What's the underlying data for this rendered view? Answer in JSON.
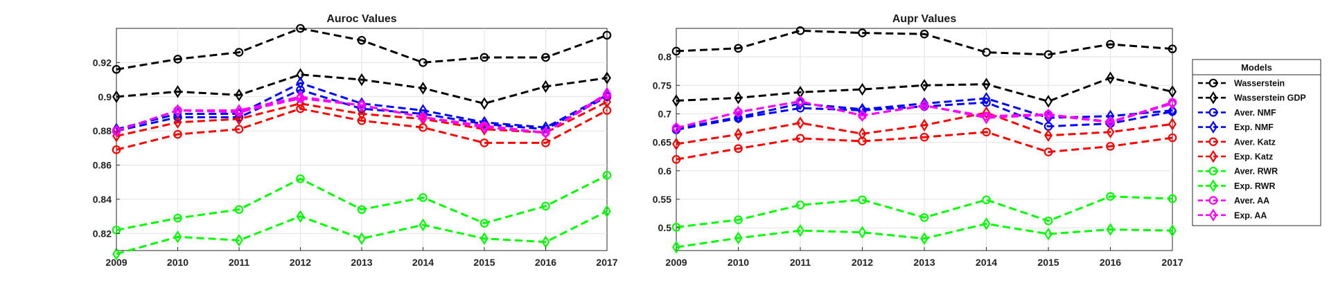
{
  "chart_data": [
    {
      "type": "line",
      "title": "Auroc Values",
      "x": [
        "2009",
        "2010",
        "2011",
        "2012",
        "2013",
        "2014",
        "2015",
        "2016",
        "2017"
      ],
      "ylim": [
        0.81,
        0.94
      ],
      "yticks": [
        "0.82",
        "0.84",
        "0.86",
        "0.88",
        "0.9",
        "0.92"
      ],
      "ytick_values": [
        0.82,
        0.84,
        0.86,
        0.88,
        0.9,
        0.92
      ],
      "grid": true,
      "series": [
        {
          "name": "Wasserstein",
          "color": "#000000",
          "marker": "circle",
          "values": [
            0.916,
            0.922,
            0.926,
            0.94,
            0.933,
            0.92,
            0.923,
            0.923,
            0.936
          ]
        },
        {
          "name": "Wasserstein GDP",
          "color": "#000000",
          "marker": "diamond",
          "values": [
            0.9,
            0.903,
            0.901,
            0.913,
            0.91,
            0.905,
            0.896,
            0.906,
            0.911
          ]
        },
        {
          "name": "Aver. NMF",
          "color": "#0000ff",
          "marker": "circle",
          "values": [
            0.88,
            0.888,
            0.888,
            0.904,
            0.893,
            0.89,
            0.884,
            0.881,
            0.9
          ]
        },
        {
          "name": "Exp. NMF",
          "color": "#0000ff",
          "marker": "diamond",
          "values": [
            0.881,
            0.89,
            0.89,
            0.908,
            0.896,
            0.892,
            0.885,
            0.882,
            0.901
          ]
        },
        {
          "name": "Aver. Katz",
          "color": "#ff0000",
          "marker": "circle",
          "values": [
            0.869,
            0.878,
            0.881,
            0.893,
            0.886,
            0.882,
            0.873,
            0.873,
            0.892
          ]
        },
        {
          "name": "Exp. Katz",
          "color": "#ff0000",
          "marker": "diamond",
          "values": [
            0.877,
            0.885,
            0.887,
            0.896,
            0.89,
            0.887,
            0.881,
            0.879,
            0.897
          ]
        },
        {
          "name": "Aver. RWR",
          "color": "#00ff00",
          "marker": "circle",
          "values": [
            0.822,
            0.829,
            0.834,
            0.852,
            0.834,
            0.841,
            0.826,
            0.836,
            0.854
          ]
        },
        {
          "name": "Exp. RWR",
          "color": "#00ff00",
          "marker": "diamond",
          "values": [
            0.808,
            0.818,
            0.816,
            0.83,
            0.817,
            0.825,
            0.817,
            0.815,
            0.833
          ]
        },
        {
          "name": "Aver. AA",
          "color": "#ff00ff",
          "marker": "circle",
          "values": [
            0.88,
            0.892,
            0.891,
            0.899,
            0.895,
            0.888,
            0.883,
            0.879,
            0.901
          ]
        },
        {
          "name": "Exp. AA",
          "color": "#ff00ff",
          "marker": "diamond",
          "values": [
            0.88,
            0.892,
            0.892,
            0.9,
            0.895,
            0.888,
            0.882,
            0.879,
            0.902
          ]
        }
      ]
    },
    {
      "type": "line",
      "title": "Aupr Values",
      "x": [
        "2009",
        "2010",
        "2011",
        "2012",
        "2013",
        "2014",
        "2015",
        "2016",
        "2017"
      ],
      "ylim": [
        0.46,
        0.85
      ],
      "yticks": [
        "0.5",
        "0.55",
        "0.6",
        "0.65",
        "0.7",
        "0.75",
        "0.8"
      ],
      "ytick_values": [
        0.5,
        0.55,
        0.6,
        0.65,
        0.7,
        0.75,
        0.8
      ],
      "grid": true,
      "series": [
        {
          "name": "Wasserstein",
          "color": "#000000",
          "marker": "circle",
          "values": [
            0.81,
            0.815,
            0.846,
            0.842,
            0.84,
            0.808,
            0.804,
            0.822,
            0.814
          ]
        },
        {
          "name": "Wasserstein GDP",
          "color": "#000000",
          "marker": "diamond",
          "values": [
            0.723,
            0.728,
            0.738,
            0.743,
            0.75,
            0.752,
            0.722,
            0.763,
            0.739
          ]
        },
        {
          "name": "Aver. NMF",
          "color": "#0000ff",
          "marker": "circle",
          "values": [
            0.672,
            0.692,
            0.71,
            0.706,
            0.713,
            0.72,
            0.678,
            0.683,
            0.704
          ]
        },
        {
          "name": "Exp. NMF",
          "color": "#0000ff",
          "marker": "diamond",
          "values": [
            0.674,
            0.694,
            0.718,
            0.708,
            0.718,
            0.727,
            0.693,
            0.696,
            0.706
          ]
        },
        {
          "name": "Aver. Katz",
          "color": "#ff0000",
          "marker": "circle",
          "values": [
            0.62,
            0.639,
            0.657,
            0.652,
            0.659,
            0.668,
            0.633,
            0.643,
            0.658
          ]
        },
        {
          "name": "Exp. Katz",
          "color": "#ff0000",
          "marker": "diamond",
          "values": [
            0.647,
            0.664,
            0.684,
            0.665,
            0.68,
            0.702,
            0.662,
            0.668,
            0.682
          ]
        },
        {
          "name": "Aver. RWR",
          "color": "#00ff00",
          "marker": "circle",
          "values": [
            0.501,
            0.514,
            0.54,
            0.549,
            0.518,
            0.549,
            0.512,
            0.555,
            0.551
          ]
        },
        {
          "name": "Exp. RWR",
          "color": "#00ff00",
          "marker": "diamond",
          "values": [
            0.466,
            0.482,
            0.495,
            0.492,
            0.481,
            0.507,
            0.489,
            0.497,
            0.495
          ]
        },
        {
          "name": "Aver. AA",
          "color": "#ff00ff",
          "marker": "circle",
          "values": [
            0.675,
            0.703,
            0.722,
            0.697,
            0.714,
            0.696,
            0.699,
            0.686,
            0.72
          ]
        },
        {
          "name": "Exp. AA",
          "color": "#ff00ff",
          "marker": "diamond",
          "values": [
            0.675,
            0.703,
            0.722,
            0.697,
            0.715,
            0.693,
            0.698,
            0.685,
            0.718
          ]
        }
      ]
    }
  ],
  "legend": {
    "title": "Models",
    "placement": "right",
    "entries": [
      "Wasserstein",
      "Wasserstein GDP",
      "Aver. NMF",
      "Exp. NMF",
      "Aver. Katz",
      "Exp. Katz",
      "Aver. RWR",
      "Exp. RWR",
      "Aver. AA",
      "Exp. AA"
    ]
  }
}
